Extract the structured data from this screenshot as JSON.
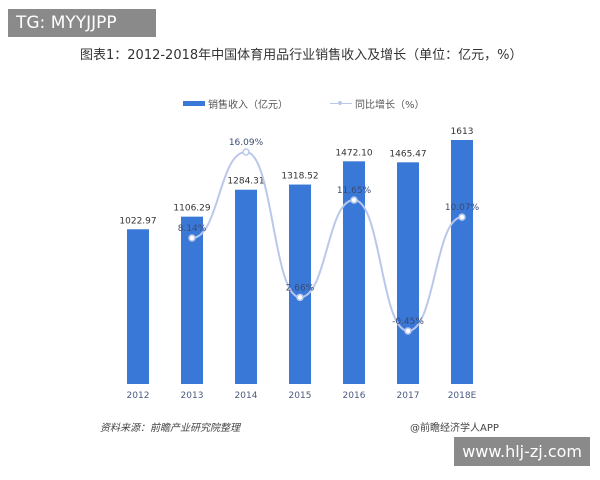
{
  "watermark_top": "TG: MYYJJPP",
  "watermark_bottom": "www.hlj-zj.com",
  "chart_data": {
    "type": "bar",
    "title": "图表1：2012-2018年中国体育用品行业销售收入及增长（单位：亿元，%）",
    "categories": [
      "2012",
      "2013",
      "2014",
      "2015",
      "2016",
      "2017",
      "2018E"
    ],
    "series": [
      {
        "name": "销售收入（亿元）",
        "type": "bar",
        "values": [
          1022.97,
          1106.29,
          1284.31,
          1318.52,
          1472.1,
          1465.47,
          1613
        ],
        "labels": [
          "1022.97",
          "1106.29",
          "1284.31",
          "1318.52",
          "1472.10",
          "1465.47",
          "1613"
        ],
        "color": "#3a78d8"
      },
      {
        "name": "同比增长（%）",
        "type": "line",
        "values": [
          null,
          8.14,
          16.09,
          2.66,
          11.65,
          -0.45,
          10.07
        ],
        "labels": [
          "",
          "8.14%",
          "16.09%",
          "2.66%",
          "11.65%",
          "-0.45%",
          "10.07%"
        ],
        "color": "#b9c8ea"
      }
    ],
    "grid": false,
    "legend": "top"
  },
  "footer": {
    "source": "资料来源：前瞻产业研究院整理",
    "credit": "@前瞻经济学人APP"
  }
}
